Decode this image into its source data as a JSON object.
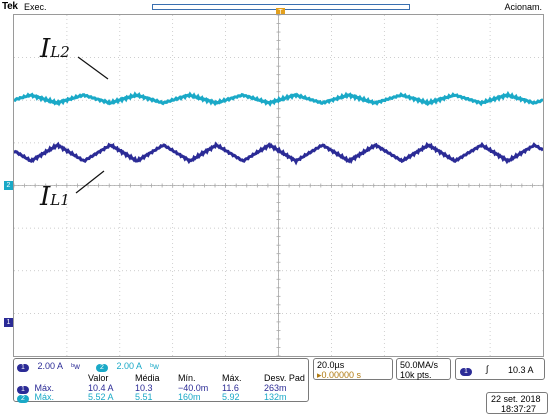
{
  "topbar": {
    "brand": "Tek",
    "run_state": "Exec.",
    "trigger_status": "Acionam.",
    "record_position": 0.5
  },
  "waveform_labels": {
    "il2_main": "I",
    "il2_sub": "L2",
    "il1_main": "I",
    "il1_sub": "L1"
  },
  "markers": {
    "ch2": "2",
    "ch1": "1",
    "trigger": "T"
  },
  "channels": {
    "ch1": {
      "badge": "1",
      "scale": "2.00 A",
      "bw": "ᵇw"
    },
    "ch2": {
      "badge": "2",
      "scale": "2.00 A",
      "bw": "ᵇw"
    }
  },
  "measurements": {
    "headers": [
      "Valor",
      "Média",
      "Mín.",
      "Máx.",
      "Desv. Pad"
    ],
    "rows": [
      {
        "badge": "1",
        "label": "Máx.",
        "values": [
          "10.4 A",
          "10.3",
          "−40.0m",
          "11.6",
          "263m"
        ]
      },
      {
        "badge": "2",
        "label": "Máx.",
        "values": [
          "5.52 A",
          "5.51",
          "160m",
          "5.92",
          "132m"
        ]
      }
    ]
  },
  "timebase": {
    "scale": "20.0µs",
    "position": "▸0.00000 s"
  },
  "acquisition": {
    "rate": "50.0MA/s",
    "points": "10k pts."
  },
  "trigger": {
    "source_badge": "1",
    "slope": "∫",
    "level": "10.3 A"
  },
  "datetime": {
    "date": "22 set.  2018",
    "time": "18:37:27"
  },
  "colors": {
    "ch1": "#2b2b96",
    "ch2": "#1aa9c7",
    "trigger": "#e3a01d"
  }
}
